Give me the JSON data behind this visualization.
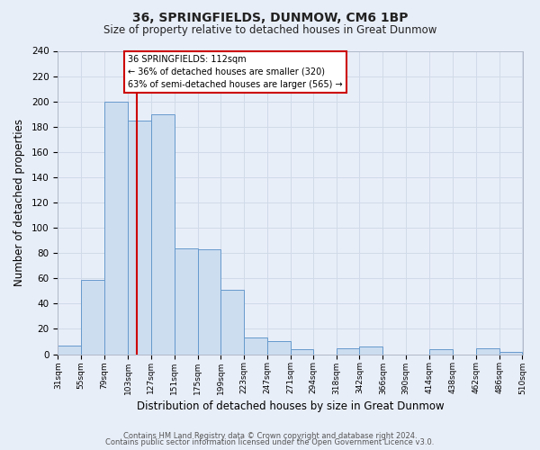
{
  "title": "36, SPRINGFIELDS, DUNMOW, CM6 1BP",
  "subtitle": "Size of property relative to detached houses in Great Dunmow",
  "xlabel": "Distribution of detached houses by size in Great Dunmow",
  "ylabel": "Number of detached properties",
  "bar_edges": [
    31,
    55,
    79,
    103,
    127,
    151,
    175,
    199,
    223,
    247,
    271,
    294,
    318,
    342,
    366,
    390,
    414,
    438,
    462,
    486,
    510
  ],
  "bar_heights": [
    7,
    59,
    200,
    185,
    190,
    84,
    83,
    51,
    13,
    10,
    4,
    0,
    5,
    6,
    0,
    0,
    4,
    0,
    5,
    2
  ],
  "bar_color": "#ccddf0",
  "bar_edge_color": "#6699cc",
  "property_size": 112,
  "vline_color": "#cc0000",
  "ylim": [
    0,
    240
  ],
  "yticks": [
    0,
    20,
    40,
    60,
    80,
    100,
    120,
    140,
    160,
    180,
    200,
    220,
    240
  ],
  "annotation_title": "36 SPRINGFIELDS: 112sqm",
  "annotation_line1": "← 36% of detached houses are smaller (320)",
  "annotation_line2": "63% of semi-detached houses are larger (565) →",
  "annotation_box_color": "#ffffff",
  "annotation_box_edge": "#cc0000",
  "grid_color": "#d0dae8",
  "footer1": "Contains HM Land Registry data © Crown copyright and database right 2024.",
  "footer2": "Contains public sector information licensed under the Open Government Licence v3.0.",
  "background_color": "#e8eef8"
}
